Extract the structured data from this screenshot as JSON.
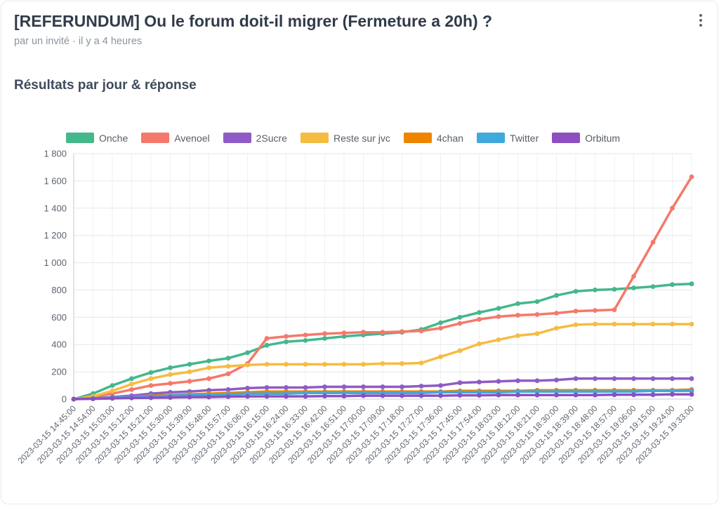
{
  "header": {
    "title": "[REFERUNDUM] Ou le forum doit-il migrer (Fermeture a 20h) ?",
    "byline": "par un invité · il y a 4 heures"
  },
  "section": {
    "title": "Résultats par jour & réponse"
  },
  "chart_data": {
    "type": "line",
    "title": "Résultats par jour & réponse",
    "xlabel": "",
    "ylabel": "",
    "ylim": [
      0,
      1800
    ],
    "ytick_step": 200,
    "ytick_labels": [
      "0",
      "200",
      "400",
      "600",
      "800",
      "1 000",
      "1 200",
      "1 400",
      "1 600",
      "1 800"
    ],
    "grid": true,
    "legend_position": "top",
    "x": [
      "2023-03-15 14:45:00",
      "2023-03-15 14:54:00",
      "2023-03-15 15:03:00",
      "2023-03-15 15:12:00",
      "2023-03-15 15:21:00",
      "2023-03-15 15:30:00",
      "2023-03-15 15:39:00",
      "2023-03-15 15:48:00",
      "2023-03-15 15:57:00",
      "2023-03-15 16:06:00",
      "2023-03-15 16:15:00",
      "2023-03-15 16:24:00",
      "2023-03-15 16:33:00",
      "2023-03-15 16:42:00",
      "2023-03-15 16:51:00",
      "2023-03-15 17:00:00",
      "2023-03-15 17:09:00",
      "2023-03-15 17:18:00",
      "2023-03-15 17:27:00",
      "2023-03-15 17:36:00",
      "2023-03-15 17:45:00",
      "2023-03-15 17:54:00",
      "2023-03-15 18:03:00",
      "2023-03-15 18:12:00",
      "2023-03-15 18:21:00",
      "2023-03-15 18:30:00",
      "2023-03-15 18:39:00",
      "2023-03-15 18:48:00",
      "2023-03-15 18:57:00",
      "2023-03-15 19:06:00",
      "2023-03-15 19:15:00",
      "2023-03-15 19:24:00",
      "2023-03-15 19:33:00"
    ],
    "series": [
      {
        "name": "Onche",
        "color": "#44b78b",
        "values": [
          0,
          40,
          100,
          150,
          195,
          230,
          255,
          280,
          300,
          340,
          395,
          420,
          430,
          445,
          460,
          470,
          480,
          490,
          510,
          560,
          600,
          635,
          665,
          700,
          715,
          760,
          790,
          800,
          805,
          815,
          825,
          840,
          845
        ]
      },
      {
        "name": "Avenoel",
        "color": "#f4796b",
        "values": [
          0,
          15,
          40,
          70,
          100,
          115,
          130,
          150,
          185,
          260,
          445,
          460,
          470,
          480,
          485,
          490,
          490,
          495,
          500,
          520,
          555,
          585,
          605,
          615,
          620,
          630,
          645,
          650,
          655,
          900,
          1150,
          1400,
          1630
        ]
      },
      {
        "name": "2Sucre",
        "color": "#8e5bc6",
        "values": [
          0,
          5,
          15,
          25,
          40,
          50,
          55,
          65,
          70,
          80,
          85,
          85,
          85,
          90,
          90,
          90,
          90,
          90,
          95,
          100,
          120,
          125,
          130,
          135,
          135,
          140,
          150,
          150,
          150,
          150,
          150,
          150,
          150
        ]
      },
      {
        "name": "Reste sur jvc",
        "color": "#f5bc42",
        "values": [
          0,
          20,
          60,
          110,
          150,
          180,
          200,
          230,
          240,
          250,
          255,
          255,
          255,
          255,
          255,
          255,
          260,
          260,
          265,
          310,
          355,
          405,
          435,
          465,
          480,
          520,
          545,
          550,
          550,
          550,
          550,
          550,
          550
        ]
      },
      {
        "name": "4chan",
        "color": "#ee8400",
        "values": [
          0,
          5,
          10,
          15,
          25,
          30,
          35,
          40,
          45,
          50,
          55,
          55,
          55,
          55,
          55,
          55,
          55,
          55,
          55,
          55,
          60,
          60,
          60,
          60,
          65,
          65,
          65,
          65,
          65,
          65,
          65,
          65,
          70
        ]
      },
      {
        "name": "Twitter",
        "color": "#3fa9dc",
        "values": [
          0,
          5,
          10,
          15,
          20,
          25,
          30,
          30,
          35,
          40,
          40,
          40,
          45,
          45,
          45,
          45,
          45,
          45,
          45,
          50,
          50,
          50,
          50,
          55,
          55,
          55,
          55,
          55,
          55,
          55,
          60,
          60,
          60
        ]
      },
      {
        "name": "Orbitum",
        "color": "#8d4fc0",
        "values": [
          0,
          2,
          5,
          8,
          10,
          12,
          15,
          15,
          18,
          20,
          20,
          20,
          20,
          22,
          22,
          25,
          25,
          25,
          25,
          25,
          28,
          28,
          30,
          30,
          30,
          30,
          30,
          30,
          32,
          32,
          32,
          35,
          35
        ]
      }
    ]
  }
}
